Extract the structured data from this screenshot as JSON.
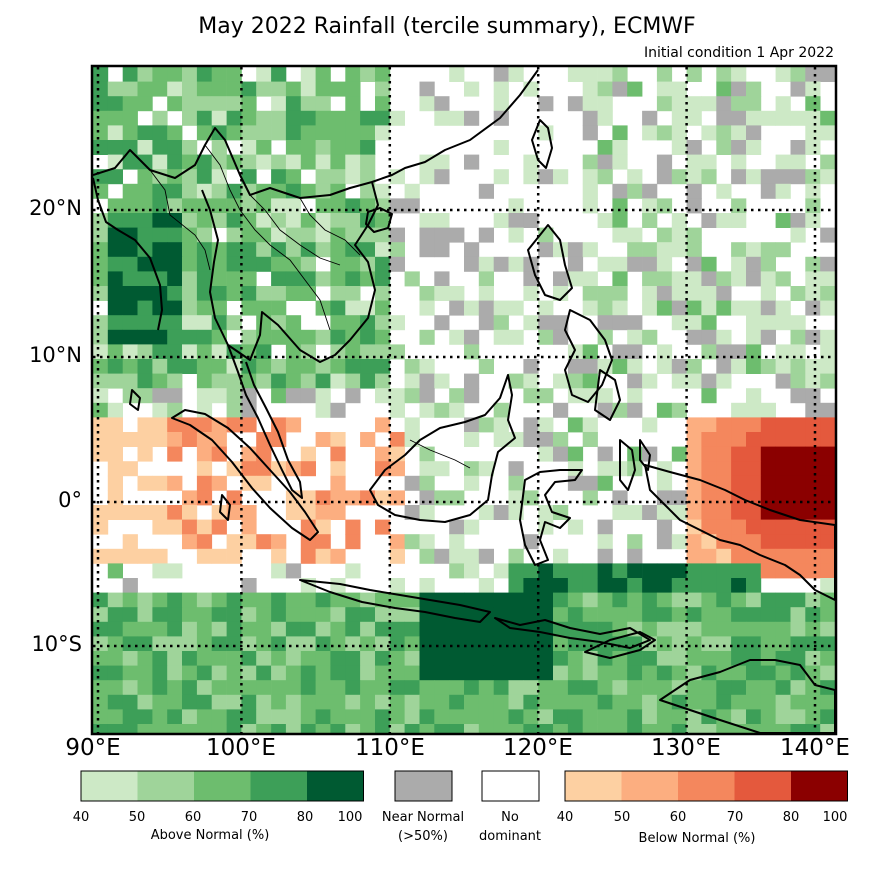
{
  "title": "May 2022 Rainfall (tercile summary), ECMWF",
  "subtitle": "Initial condition 1 Apr 2022",
  "map": {
    "lon_labels": [
      "90°E",
      "100°E",
      "110°E",
      "120°E",
      "130°E",
      "140°E"
    ],
    "lat_labels": [
      "20°N",
      "10°N",
      "0°",
      "10°S"
    ]
  },
  "legend": {
    "above": {
      "caption": "Above Normal (%)",
      "ticks": [
        "40",
        "50",
        "60",
        "70",
        "80",
        "100"
      ],
      "colors": [
        "#cde9c6",
        "#9fd49a",
        "#6dbd6e",
        "#3d9f58",
        "#005a32"
      ]
    },
    "near": {
      "caption_line1": "Near Normal",
      "caption_line2": "(>50%)",
      "color": "#ababab"
    },
    "none": {
      "caption_line1": "No",
      "caption_line2": "dominant",
      "color": "#ffffff"
    },
    "below": {
      "caption": "Below Normal (%)",
      "ticks": [
        "40",
        "50",
        "60",
        "70",
        "80",
        "100"
      ],
      "colors": [
        "#fdd0a2",
        "#fcae80",
        "#f4875d",
        "#e4593d",
        "#8b0000"
      ]
    }
  }
}
